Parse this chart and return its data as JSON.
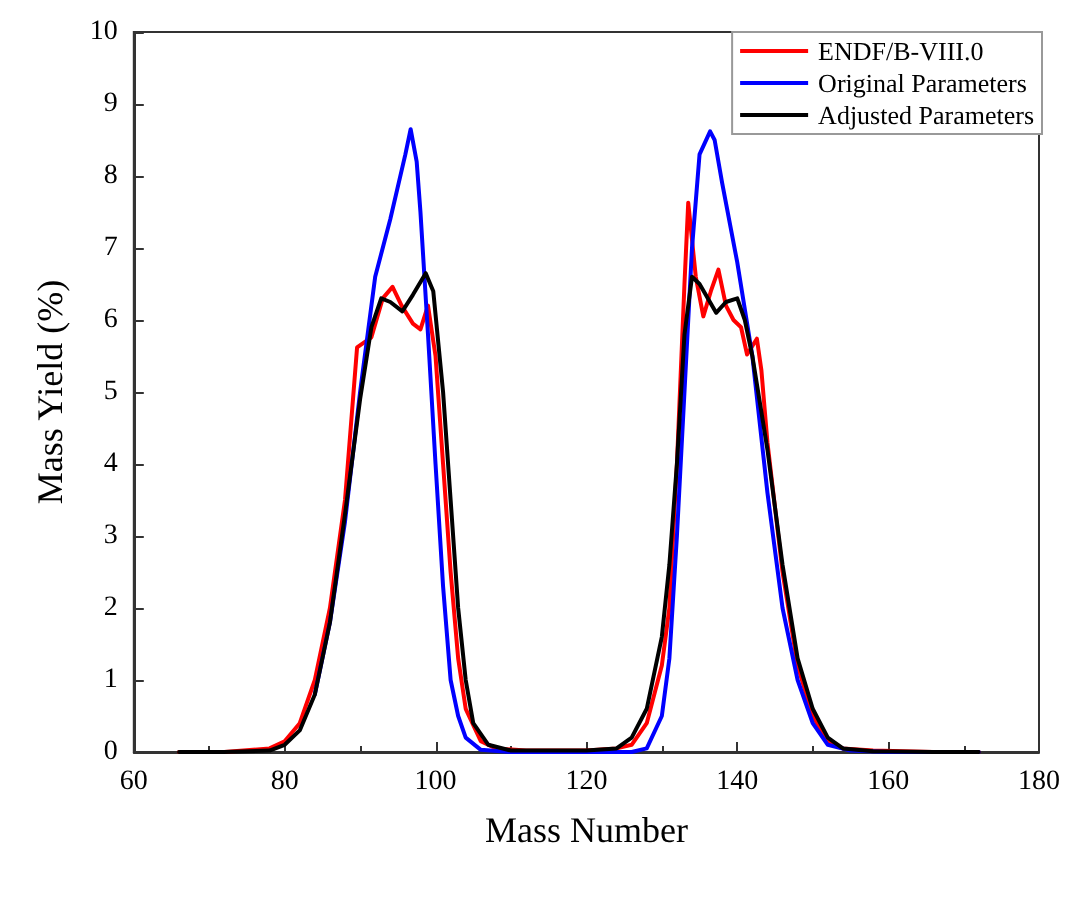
{
  "chart_data": {
    "type": "line",
    "xlabel": "Mass Number",
    "ylabel": "Mass Yield (%)",
    "xlim": [
      60,
      180
    ],
    "xticks": [
      60,
      80,
      100,
      120,
      140,
      160,
      180
    ],
    "ylim": [
      0,
      10
    ],
    "yticks": [
      0,
      1,
      2,
      3,
      4,
      5,
      6,
      7,
      8,
      9,
      10
    ],
    "grid": false,
    "legend": "top right",
    "marker": "none",
    "line_style": "solid",
    "series": [
      {
        "name": "ENDF/B-VIII.0",
        "color": "#ff0000",
        "x": [
          66,
          72,
          78,
          80,
          82,
          84,
          86,
          88,
          89.6,
          91.5,
          93,
          94.3,
          95.5,
          97,
          98,
          99,
          100,
          101,
          102,
          103,
          104,
          106,
          108,
          112,
          120,
          124,
          126,
          128,
          130,
          131,
          132,
          133,
          133.5,
          134.5,
          135.5,
          136.5,
          137.5,
          138.5,
          139.5,
          140.5,
          141.3,
          142.6,
          143.2,
          144,
          146,
          148,
          150,
          152,
          154,
          158,
          166,
          172
        ],
        "values": [
          0,
          0,
          0.05,
          0.15,
          0.4,
          1,
          2,
          3.5,
          5.62,
          5.76,
          6.3,
          6.46,
          6.2,
          5.95,
          5.87,
          6.2,
          5.5,
          4,
          2.5,
          1.3,
          0.6,
          0.15,
          0.05,
          0.02,
          0.02,
          0.05,
          0.1,
          0.4,
          1.2,
          2,
          4,
          6.5,
          7.63,
          6.6,
          6.05,
          6.4,
          6.7,
          6.2,
          6.0,
          5.9,
          5.52,
          5.74,
          5.3,
          4.3,
          2.5,
          1.2,
          0.5,
          0.15,
          0.05,
          0.02,
          0,
          0
        ]
      },
      {
        "name": "Original Parameters",
        "color": "#0000ff",
        "x": [
          84,
          86,
          88,
          90,
          92,
          94,
          96,
          96.7,
          97.5,
          98,
          99,
          100,
          101,
          102,
          103,
          104,
          106,
          110,
          120,
          126,
          128,
          130,
          131,
          132,
          133,
          134,
          135,
          136.4,
          137,
          138,
          140,
          142,
          144,
          146,
          148,
          150,
          152,
          155,
          160,
          172
        ],
        "values": [
          0.8,
          1.8,
          3.2,
          5.0,
          6.6,
          7.4,
          8.3,
          8.65,
          8.2,
          7.5,
          5.8,
          4,
          2.3,
          1,
          0.5,
          0.2,
          0.03,
          0,
          0,
          0,
          0.05,
          0.5,
          1.3,
          3,
          5,
          7,
          8.3,
          8.62,
          8.5,
          7.9,
          6.8,
          5.5,
          3.6,
          2.0,
          1.0,
          0.4,
          0.1,
          0.02,
          0,
          0
        ]
      },
      {
        "name": "Adjusted Parameters",
        "color": "#000000",
        "x": [
          66,
          72,
          78,
          80,
          82,
          84,
          86,
          88,
          90,
          91.5,
          92.8,
          94,
          95.6,
          97,
          98.7,
          99.7,
          101,
          102,
          103,
          104,
          105,
          107,
          110,
          120,
          124,
          126,
          128,
          130,
          131,
          132,
          133,
          134,
          135,
          137.2,
          138.5,
          140,
          141,
          142,
          144,
          146,
          148,
          150,
          152,
          154,
          158,
          166,
          172
        ],
        "values": [
          0,
          0,
          0.02,
          0.1,
          0.3,
          0.8,
          1.8,
          3.3,
          4.9,
          5.9,
          6.3,
          6.25,
          6.12,
          6.35,
          6.65,
          6.4,
          5,
          3.5,
          2,
          1,
          0.4,
          0.1,
          0.02,
          0.02,
          0.05,
          0.2,
          0.6,
          1.6,
          2.6,
          4,
          5.8,
          6.6,
          6.5,
          6.1,
          6.25,
          6.3,
          6.0,
          5.5,
          4.2,
          2.6,
          1.3,
          0.6,
          0.2,
          0.05,
          0.01,
          0,
          0
        ]
      }
    ]
  }
}
